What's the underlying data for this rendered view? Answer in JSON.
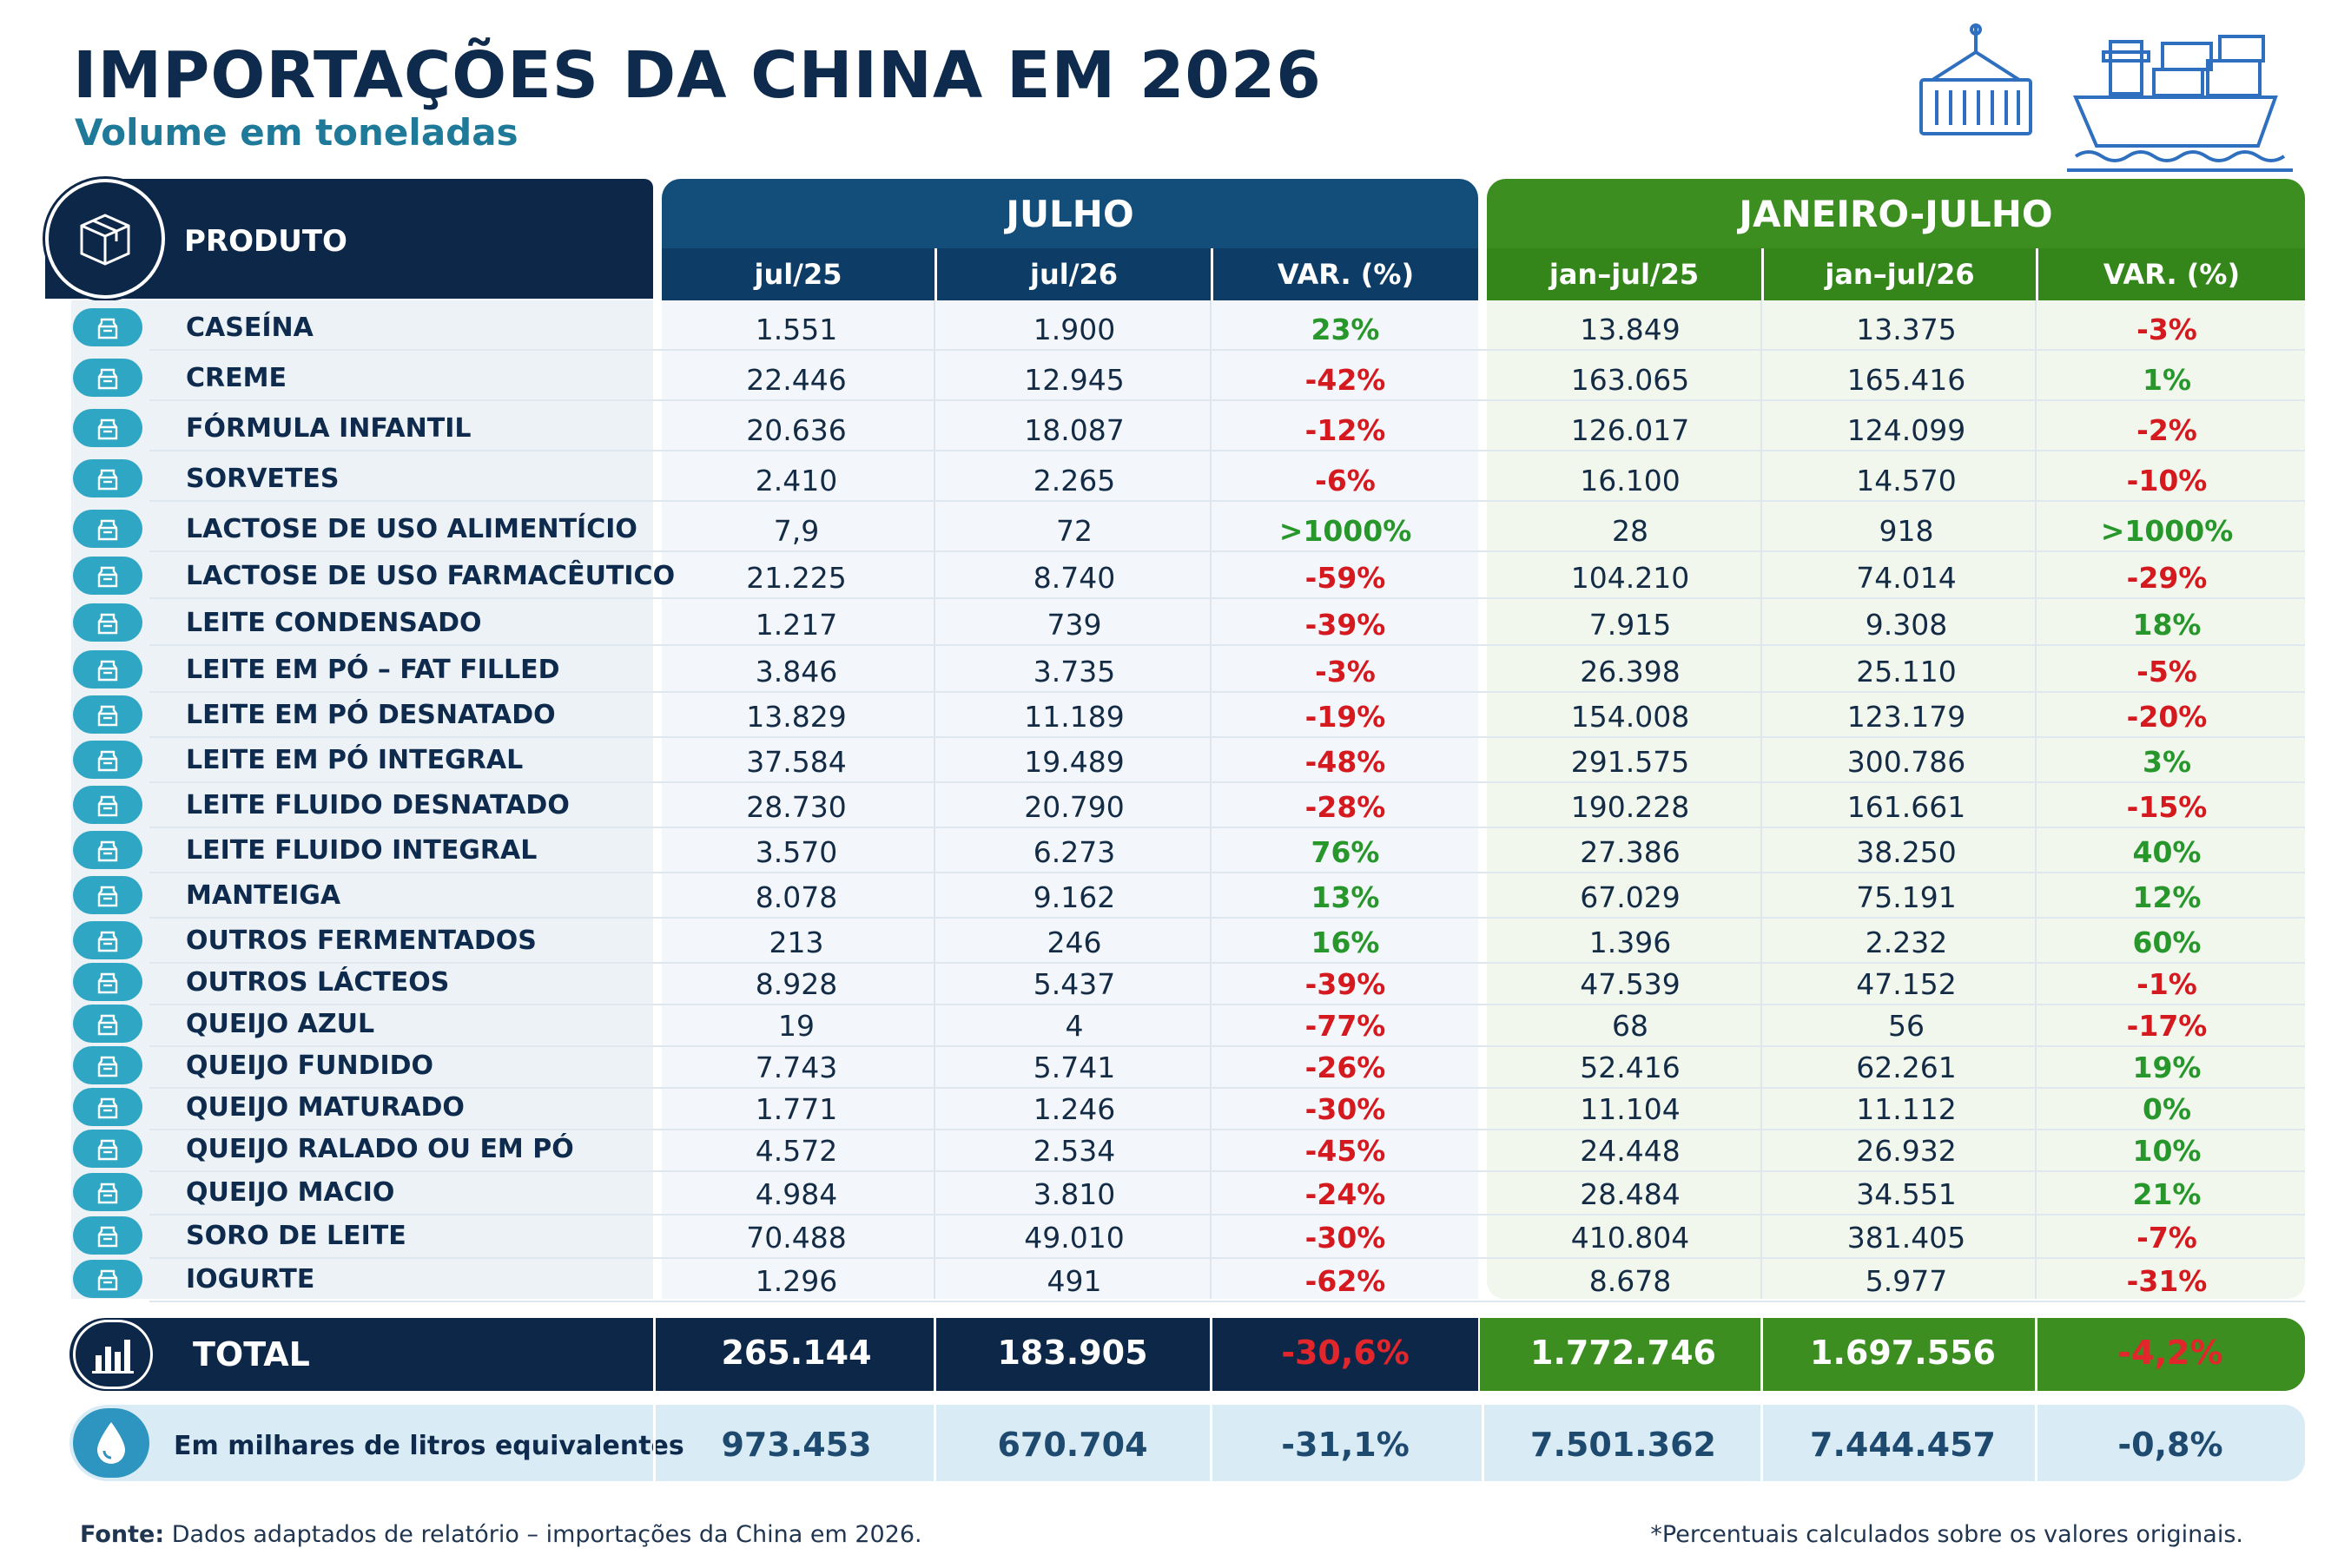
{
  "title": "IMPORTAÇÕES DA CHINA EM 2026",
  "subtitle": "Volume em toneladas",
  "header": {
    "produto": "PRODUTO",
    "julho": "JULHO",
    "janeiro_julho": "JANEIRO-JULHO",
    "cols": [
      "jul/25",
      "jul/26",
      "VAR. (%)",
      "jan–jul/25",
      "jan–jul/26",
      "VAR. (%)"
    ]
  },
  "rows": [
    {
      "name": "CASEÍNA",
      "a": "1.551",
      "b": "1.900",
      "v1": "23%",
      "c": "13.849",
      "d": "13.375",
      "v2": "-3%"
    },
    {
      "name": "CREME",
      "a": "22.446",
      "b": "12.945",
      "v1": "-42%",
      "c": "163.065",
      "d": "165.416",
      "v2": "1%"
    },
    {
      "name": "FÓRMULA INFANTIL",
      "a": "20.636",
      "b": "18.087",
      "v1": "-12%",
      "c": "126.017",
      "d": "124.099",
      "v2": "-2%"
    },
    {
      "name": "SORVETES",
      "a": "2.410",
      "b": "2.265",
      "v1": "-6%",
      "c": "16.100",
      "d": "14.570",
      "v2": "-10%"
    },
    {
      "name": "LACTOSE DE USO ALIMENTÍCIO",
      "a": "7,9",
      "b": "72",
      "v1": ">1000%",
      "c": "28",
      "d": "918",
      "v2": ">1000%"
    },
    {
      "name": "LACTOSE DE USO FARMACÊUTICO",
      "a": "21.225",
      "b": "8.740",
      "v1": "-59%",
      "c": "104.210",
      "d": "74.014",
      "v2": "-29%"
    },
    {
      "name": "LEITE CONDENSADO",
      "a": "1.217",
      "b": "739",
      "v1": "-39%",
      "c": "7.915",
      "d": "9.308",
      "v2": "18%"
    },
    {
      "name": "LEITE EM PÓ – FAT FILLED",
      "a": "3.846",
      "b": "3.735",
      "v1": "-3%",
      "c": "26.398",
      "d": "25.110",
      "v2": "-5%"
    },
    {
      "name": "LEITE EM PÓ DESNATADO",
      "a": "13.829",
      "b": "11.189",
      "v1": "-19%",
      "c": "154.008",
      "d": "123.179",
      "v2": "-20%"
    },
    {
      "name": "LEITE EM PÓ INTEGRAL",
      "a": "37.584",
      "b": "19.489",
      "v1": "-48%",
      "c": "291.575",
      "d": "300.786",
      "v2": "3%"
    },
    {
      "name": "LEITE FLUIDO DESNATADO",
      "a": "28.730",
      "b": "20.790",
      "v1": "-28%",
      "c": "190.228",
      "d": "161.661",
      "v2": "-15%"
    },
    {
      "name": "LEITE FLUIDO INTEGRAL",
      "a": "3.570",
      "b": "6.273",
      "v1": "76%",
      "c": "27.386",
      "d": "38.250",
      "v2": "40%"
    },
    {
      "name": "MANTEIGA",
      "a": "8.078",
      "b": "9.162",
      "v1": "13%",
      "c": "67.029",
      "d": "75.191",
      "v2": "12%"
    },
    {
      "name": "OUTROS FERMENTADOS",
      "a": "213",
      "b": "246",
      "v1": "16%",
      "c": "1.396",
      "d": "2.232",
      "v2": "60%"
    },
    {
      "name": "OUTROS LÁCTEOS",
      "a": "8.928",
      "b": "5.437",
      "v1": "-39%",
      "c": "47.539",
      "d": "47.152",
      "v2": "-1%"
    },
    {
      "name": "QUEIJO AZUL",
      "a": "19",
      "b": "4",
      "v1": "-77%",
      "c": "68",
      "d": "56",
      "v2": "-17%"
    },
    {
      "name": "QUEIJO FUNDIDO",
      "a": "7.743",
      "b": "5.741",
      "v1": "-26%",
      "c": "52.416",
      "d": "62.261",
      "v2": "19%"
    },
    {
      "name": "QUEIJO MATURADO",
      "a": "1.771",
      "b": "1.246",
      "v1": "-30%",
      "c": "11.104",
      "d": "11.112",
      "v2": "0%"
    },
    {
      "name": "QUEIJO RALADO OU EM PÓ",
      "a": "4.572",
      "b": "2.534",
      "v1": "-45%",
      "c": "24.448",
      "d": "26.932",
      "v2": "10%"
    },
    {
      "name": "QUEIJO MACIO",
      "a": "4.984",
      "b": "3.810",
      "v1": "-24%",
      "c": "28.484",
      "d": "34.551",
      "v2": "21%"
    },
    {
      "name": "SORO DE LEITE",
      "a": "70.488",
      "b": "49.010",
      "v1": "-30%",
      "c": "410.804",
      "d": "381.405",
      "v2": "-7%"
    },
    {
      "name": "IOGURTE",
      "a": "1.296",
      "b": "491",
      "v1": "-62%",
      "c": "8.678",
      "d": "5.977",
      "v2": "-31%"
    }
  ],
  "total": {
    "label": "TOTAL",
    "a": "265.144",
    "b": "183.905",
    "v1": "-30,6%",
    "c": "1.772.746",
    "d": "1.697.556",
    "v2": "-4,2%"
  },
  "liters": {
    "label": "Em milhares de litros equivalentes",
    "a": "973.453",
    "b": "670.704",
    "v1": "-31,1%",
    "c": "7.501.362",
    "d": "7.444.457",
    "v2": "-0,8%"
  },
  "footer": {
    "source_label": "Fonte:",
    "source_text": " Dados adaptados de relatório – importações da China em 2026.",
    "note": "*Percentuais calculados sobre os valores originais."
  },
  "colors": {
    "navy": "#0d2748",
    "blue": "#124e79",
    "green": "#3b8e1f",
    "negative": "#d4191f",
    "positive": "#27962b",
    "icon": "#2fa7c4"
  },
  "icons": {
    "produto": "box-icon",
    "total": "bar-chart-icon",
    "liters": "droplet-icon",
    "deco": [
      "container-crane-icon",
      "cargo-ship-icon"
    ],
    "row": "dairy-product-icon"
  }
}
